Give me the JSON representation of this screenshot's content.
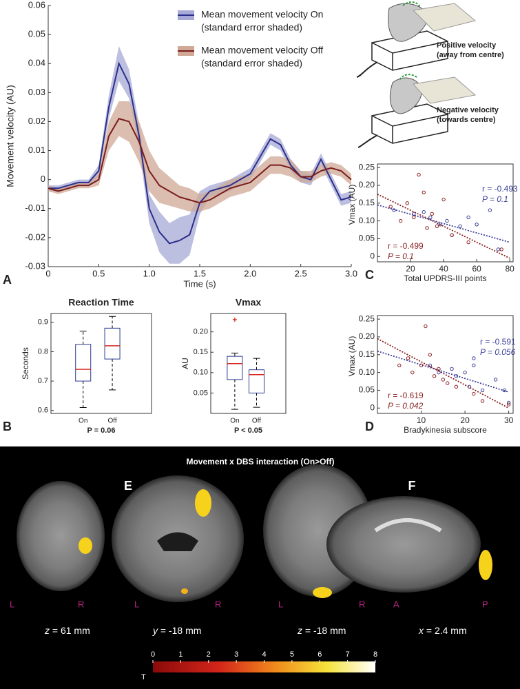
{
  "chart_data": [
    {
      "type": "line",
      "panel": "A",
      "x_label": "Time (s)",
      "y_label": "Movement velocity (AU)",
      "xlim": [
        0,
        3
      ],
      "xticks": [
        0,
        0.5,
        {
          "value": 1,
          "label": "1.0"
        },
        1.5,
        {
          "value": 2,
          "label": "2.0"
        },
        2.5,
        {
          "value": 3,
          "label": "3.0"
        }
      ],
      "ylim": [
        -0.03,
        0.06
      ],
      "yticks": [
        -0.03,
        -0.02,
        -0.01,
        0,
        0.01,
        0.02,
        0.03,
        0.04,
        0.05,
        0.06
      ],
      "x": [
        0,
        0.1,
        0.2,
        0.3,
        0.4,
        0.5,
        0.6,
        0.7,
        0.8,
        0.9,
        1,
        1.1,
        1.2,
        1.3,
        1.4,
        1.5,
        1.6,
        1.7,
        1.8,
        1.9,
        2,
        2.1,
        2.2,
        2.3,
        2.4,
        2.5,
        2.6,
        2.7,
        2.8,
        2.9,
        3
      ],
      "series": [
        {
          "name": "Mean movement velocity On",
          "error_label": "(standard error shaded)",
          "color": "#2b2f8a",
          "band_color": "#a7a9d6",
          "values": [
            -0.003,
            -0.003,
            -0.002,
            -0.001,
            -0.001,
            0.003,
            0.025,
            0.04,
            0.033,
            0.015,
            -0.01,
            -0.018,
            -0.022,
            -0.021,
            -0.019,
            -0.008,
            -0.004,
            -0.003,
            -0.002,
            0,
            0.002,
            0.008,
            0.014,
            0.012,
            0.005,
            0.001,
            0,
            0.007,
            0,
            -0.007,
            -0.006
          ],
          "errors": [
            0.001,
            0.001,
            0.001,
            0.001,
            0.001,
            0.002,
            0.004,
            0.006,
            0.005,
            0.004,
            0.005,
            0.007,
            0.007,
            0.008,
            0.007,
            0.004,
            0.002,
            0.002,
            0.002,
            0.002,
            0.002,
            0.002,
            0.002,
            0.002,
            0.002,
            0.002,
            0.002,
            0.002,
            0.002,
            0.002,
            0.002
          ]
        },
        {
          "name": "Mean movement velocity Off",
          "error_label": "(standard error shaded)",
          "color": "#7a1c1c",
          "band_color": "#cfa896",
          "values": [
            -0.003,
            -0.004,
            -0.003,
            -0.002,
            -0.002,
            0,
            0.015,
            0.021,
            0.02,
            0.013,
            0.003,
            -0.002,
            -0.004,
            -0.006,
            -0.007,
            -0.008,
            -0.007,
            -0.005,
            -0.003,
            -0.002,
            -0.001,
            0.002,
            0.005,
            0.005,
            0.004,
            0.001,
            0.001,
            0.003,
            0.004,
            0.003,
            0
          ],
          "errors": [
            0.001,
            0.001,
            0.001,
            0.001,
            0.001,
            0.002,
            0.005,
            0.006,
            0.007,
            0.007,
            0.007,
            0.006,
            0.005,
            0.004,
            0.004,
            0.003,
            0.003,
            0.003,
            0.003,
            0.003,
            0.003,
            0.003,
            0.003,
            0.003,
            0.003,
            0.002,
            0.002,
            0.002,
            0.002,
            0.002,
            0.002
          ]
        }
      ]
    },
    {
      "type": "box",
      "panel": "B",
      "title": "Reaction Time",
      "y_label": "Seconds",
      "p_label": "P = 0.06",
      "categories": [
        "On",
        "Off"
      ],
      "box_color": "#2b3990",
      "median_color": "#d7261e",
      "ylim": [
        0.59,
        0.93
      ],
      "yticks": [
        0.6,
        0.7,
        0.8,
        0.9
      ],
      "boxes": [
        {
          "min": 0.61,
          "q1": 0.7,
          "median": 0.74,
          "q3": 0.825,
          "max": 0.87,
          "outliers": []
        },
        {
          "min": 0.67,
          "q1": 0.775,
          "median": 0.82,
          "q3": 0.88,
          "max": 0.92,
          "outliers": []
        }
      ]
    },
    {
      "type": "box",
      "title": "Vmax",
      "y_label": "AU",
      "p_label": "P < 0.05",
      "categories": [
        "On",
        "Off"
      ],
      "box_color": "#2b3990",
      "median_color": "#d7261e",
      "ylim": [
        0,
        0.245
      ],
      "yticks": [
        0.05,
        {
          "value": 0.1,
          "label": "0.10"
        },
        0.15,
        {
          "value": 0.2,
          "label": "0.20"
        }
      ],
      "boxes": [
        {
          "min": 0.01,
          "q1": 0.083,
          "median": 0.122,
          "q3": 0.14,
          "max": 0.148,
          "outliers": [
            0.23
          ]
        },
        {
          "min": 0.015,
          "q1": 0.05,
          "median": 0.095,
          "q3": 0.107,
          "max": 0.135,
          "outliers": []
        }
      ]
    },
    {
      "type": "scatter",
      "panel": "C",
      "x_label": "Total UPDRS-III points",
      "y_label": "Vmax (AU)",
      "xlim": [
        0,
        82
      ],
      "xticks": [
        20,
        40,
        60,
        80
      ],
      "ylim": [
        -0.015,
        0.26
      ],
      "yticks": [
        0,
        0.05,
        {
          "value": 0.1,
          "label": "0.10"
        },
        0.15,
        {
          "value": 0.2,
          "label": "0.20"
        },
        0.25
      ],
      "series": [
        {
          "color": "#3a3f98",
          "r_label": "r = -0.493",
          "p_label": "P = 0.1",
          "x": [
            10,
            22,
            28,
            32,
            38,
            42,
            45,
            50,
            55,
            60,
            68,
            73
          ],
          "values": [
            0.13,
            0.12,
            0.125,
            0.11,
            0.09,
            0.1,
            0.06,
            0.085,
            0.11,
            0.09,
            0.13,
            0.02
          ],
          "trend": {
            "x": [
              0,
              80
            ],
            "values": [
              0.145,
              0.04
            ]
          }
        },
        {
          "color": "#8b1f1f",
          "r_label": "r = -0.499",
          "p_label": "P = 0.1",
          "x": [
            8,
            14,
            18,
            22,
            25,
            28,
            30,
            33,
            36,
            40,
            45,
            55,
            75
          ],
          "values": [
            0.14,
            0.1,
            0.15,
            0.11,
            0.23,
            0.18,
            0.08,
            0.12,
            0.085,
            0.16,
            0.06,
            0.04,
            0.02
          ],
          "trend": {
            "x": [
              0,
              80
            ],
            "values": [
              0.175,
              -0.005
            ]
          }
        }
      ]
    },
    {
      "type": "scatter",
      "panel": "D",
      "x_label": "Bradykinesia subscore",
      "y_label": "Vmax (AU)",
      "xlim": [
        0,
        31
      ],
      "xticks": [
        10,
        20,
        30
      ],
      "ylim": [
        -0.015,
        0.26
      ],
      "yticks": [
        0,
        0.05,
        {
          "value": 0.1,
          "label": "0.10"
        },
        0.15,
        {
          "value": 0.2,
          "label": "0.20"
        },
        0.25
      ],
      "series": [
        {
          "color": "#3a3f98",
          "r_label": "r = -0.591",
          "p_label": "P = 0.056",
          "x": [
            12,
            14,
            17,
            18,
            20,
            21,
            22,
            22,
            24,
            27,
            29,
            30
          ],
          "values": [
            0.12,
            0.1,
            0.11,
            0.09,
            0.1,
            0.06,
            0.14,
            0.12,
            0.05,
            0.08,
            0.05,
            0.015
          ],
          "trend": {
            "x": [
              0,
              30
            ],
            "values": [
              0.16,
              0.045
            ]
          }
        },
        {
          "color": "#8b1f1f",
          "r_label": "r = -0.619",
          "p_label": "P = 0.042",
          "x": [
            5,
            7,
            8,
            10,
            11,
            12,
            13,
            14,
            15,
            16,
            18,
            22,
            24,
            30
          ],
          "values": [
            0.12,
            0.14,
            0.1,
            0.12,
            0.23,
            0.15,
            0.09,
            0.11,
            0.08,
            0.07,
            0.06,
            0.04,
            0.02,
            0.01
          ],
          "trend": {
            "x": [
              0,
              30
            ],
            "values": [
              0.195,
              0
            ]
          }
        }
      ]
    }
  ],
  "illustration": {
    "positive": [
      "Positive velocity",
      "(away from centre)"
    ],
    "negative": [
      "Negative velocity",
      "(towards centre)"
    ]
  },
  "brain_panel": {
    "title": "Movement x DBS interaction (On>Off)",
    "panels": [
      "E",
      "F"
    ],
    "slices": [
      {
        "left": "L",
        "right": "R",
        "axis": "z",
        "text": " = 61 mm"
      },
      {
        "left": "L",
        "right": "R",
        "axis": "y",
        "text": " = -18 mm"
      },
      {
        "left": "L",
        "right": "R",
        "axis": "z",
        "text": " = -18 mm"
      },
      {
        "left": "A",
        "right": "P",
        "axis": "x",
        "text": " = 2.4 mm"
      }
    ],
    "colorbar": {
      "label": "T",
      "ticks": [
        0,
        1,
        2,
        3,
        4,
        5,
        6,
        7,
        8
      ],
      "lim": [
        0,
        8
      ]
    }
  }
}
